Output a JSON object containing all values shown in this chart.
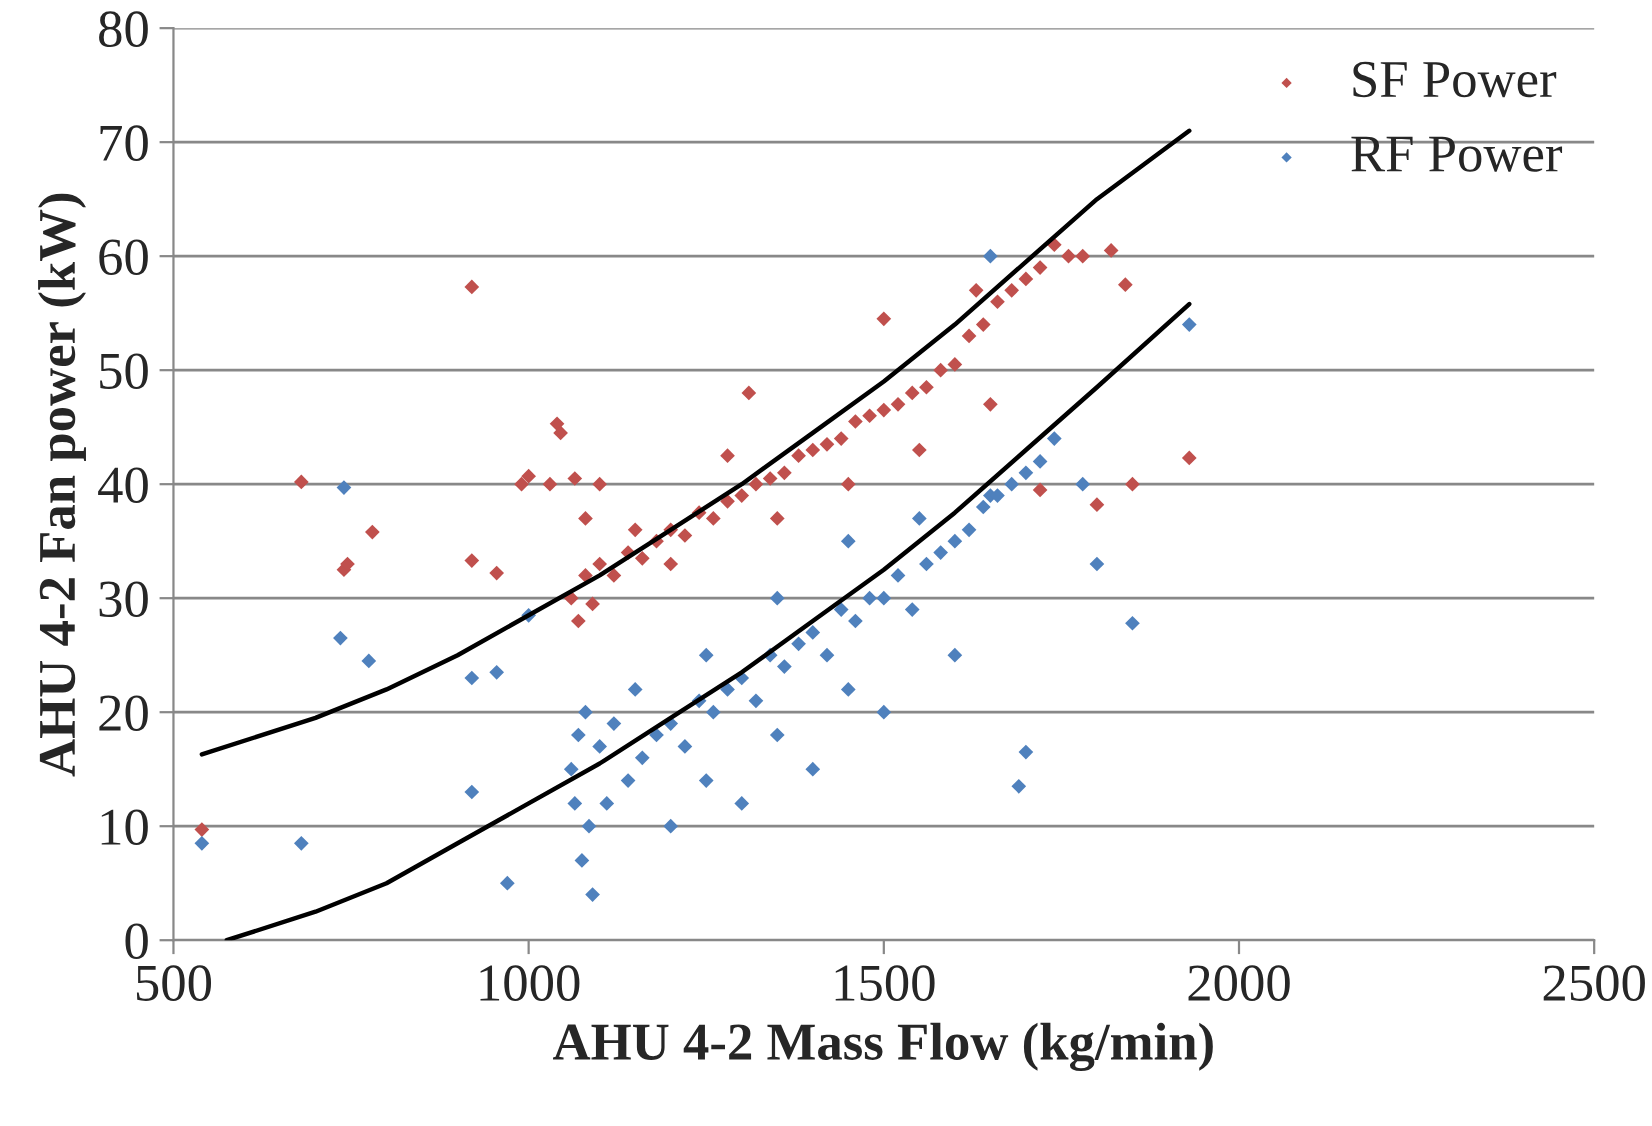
{
  "chart_data": {
    "type": "scatter",
    "xlabel": "AHU 4-2 Mass Flow (kg/min)",
    "ylabel": "AHU 4-2 Fan power (kW)",
    "xlim": [
      500,
      2500
    ],
    "xticks": [
      500,
      1000,
      1500,
      2000,
      2500
    ],
    "ylim": [
      0,
      80
    ],
    "yticks": [
      0,
      10,
      20,
      30,
      40,
      50,
      60,
      70,
      80
    ],
    "grid": "y",
    "legend": "top right",
    "series": [
      {
        "name": "SF Power",
        "color": "#c0504d",
        "marker": "diamond",
        "x": [
          540,
          680,
          740,
          745,
          780,
          920,
          920,
          955,
          990,
          1000,
          1030,
          1040,
          1045,
          1065,
          1080,
          1100,
          1060,
          1070,
          1080,
          1090,
          1100,
          1120,
          1140,
          1160,
          1180,
          1200,
          1220,
          1240,
          1260,
          1280,
          1300,
          1320,
          1340,
          1360,
          1380,
          1400,
          1420,
          1440,
          1460,
          1480,
          1500,
          1520,
          1540,
          1560,
          1580,
          1600,
          1620,
          1640,
          1660,
          1680,
          1700,
          1720,
          1740,
          1760,
          1280,
          1310,
          1500,
          1630,
          1850,
          1840,
          1930,
          1780,
          1820,
          1800,
          1720,
          1350,
          1450,
          1550,
          1650,
          1200,
          1150
        ],
        "values": [
          9.7,
          40.2,
          32.5,
          33,
          35.8,
          57.3,
          33.3,
          32.2,
          40,
          40.7,
          40,
          45.3,
          44.5,
          40.5,
          37,
          40,
          30,
          28,
          32,
          29.5,
          33,
          32,
          34,
          33.5,
          35,
          36,
          35.5,
          37.5,
          37,
          38.5,
          39,
          40,
          40.5,
          41,
          42.5,
          43,
          43.5,
          44,
          45.5,
          46,
          46.5,
          47,
          48,
          48.5,
          50,
          50.5,
          53,
          54,
          56,
          57,
          58,
          59,
          61,
          60,
          42.5,
          48,
          54.5,
          57,
          40,
          57.5,
          42.3,
          60,
          60.5,
          38.2,
          39.5,
          37,
          40,
          43,
          47,
          33,
          36
        ]
      },
      {
        "name": "RF Power",
        "color": "#4f81bd",
        "marker": "diamond",
        "x": [
          540,
          680,
          740,
          735,
          775,
          920,
          920,
          955,
          970,
          1000,
          1930,
          1850,
          1700,
          1690,
          1650,
          1780,
          1800,
          1650,
          1060,
          1065,
          1070,
          1075,
          1080,
          1085,
          1090,
          1100,
          1110,
          1120,
          1140,
          1160,
          1180,
          1200,
          1220,
          1240,
          1260,
          1280,
          1300,
          1320,
          1340,
          1360,
          1380,
          1400,
          1420,
          1440,
          1460,
          1480,
          1500,
          1520,
          1540,
          1560,
          1580,
          1600,
          1620,
          1640,
          1660,
          1680,
          1700,
          1720,
          1740,
          1200,
          1300,
          1400,
          1500,
          1600,
          1250,
          1350,
          1450,
          1550,
          1150,
          1250,
          1350,
          1450
        ],
        "values": [
          8.5,
          8.5,
          39.7,
          26.5,
          24.5,
          23,
          13,
          23.5,
          5,
          28.5,
          54,
          27.8,
          16.5,
          13.5,
          60,
          40,
          33,
          39,
          15,
          12,
          18,
          7,
          20,
          10,
          4,
          17,
          12,
          19,
          14,
          16,
          18,
          19,
          17,
          21,
          20,
          22,
          23,
          21,
          25,
          24,
          26,
          27,
          25,
          29,
          28,
          30,
          30,
          32,
          29,
          33,
          34,
          35,
          36,
          38,
          39,
          40,
          41,
          42,
          44,
          10,
          12,
          15,
          20,
          25,
          25,
          30,
          35,
          37,
          22,
          14,
          18,
          22
        ]
      },
      {
        "type": "line",
        "color": "#000000",
        "x": [
          540,
          700,
          800,
          900,
          1000,
          1100,
          1200,
          1300,
          1400,
          1500,
          1600,
          1700,
          1800,
          1930
        ],
        "values": [
          16.3,
          19.5,
          22,
          25,
          28.5,
          32,
          36,
          40,
          44.5,
          49,
          54,
          59.5,
          65,
          71
        ]
      },
      {
        "type": "line",
        "color": "#000000",
        "x": [
          575,
          700,
          800,
          900,
          1000,
          1100,
          1200,
          1300,
          1400,
          1500,
          1600,
          1700,
          1800,
          1930
        ],
        "values": [
          0,
          2.5,
          5,
          8.5,
          12,
          15.5,
          19.5,
          23.5,
          28,
          32.5,
          37.5,
          43,
          48.5,
          55.8
        ]
      }
    ]
  }
}
